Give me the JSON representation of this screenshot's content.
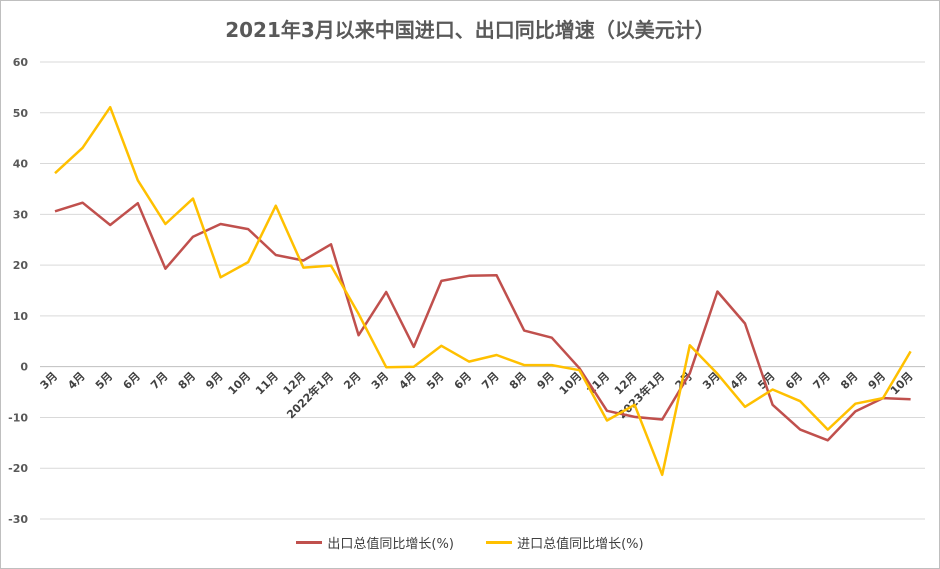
{
  "chart_data": {
    "type": "line",
    "title": "2021年3月以来中国进口、出口同比增速（以美元计）",
    "ylim": [
      -30,
      60
    ],
    "yticks": [
      60,
      50,
      40,
      30,
      20,
      10,
      0,
      -10,
      -20,
      -30
    ],
    "grid": true,
    "legend_position": "bottom",
    "categories": [
      "3月",
      "4月",
      "5月",
      "6月",
      "7月",
      "8月",
      "9月",
      "10月",
      "11月",
      "12月",
      "2022年1月",
      "2月",
      "3月",
      "4月",
      "5月",
      "6月",
      "7月",
      "8月",
      "9月",
      "10月",
      "11月",
      "12月",
      "2023年1月",
      "2月",
      "3月",
      "4月",
      "5月",
      "6月",
      "7月",
      "8月",
      "9月",
      "10月"
    ],
    "series": [
      {
        "name": "出口总值同比增长(%)",
        "color": "#C0504D",
        "values": [
          30.6,
          32.3,
          27.9,
          32.2,
          19.3,
          25.6,
          28.1,
          27.1,
          22.0,
          20.9,
          24.1,
          6.2,
          14.7,
          3.9,
          16.9,
          17.9,
          18.0,
          7.1,
          5.7,
          -0.3,
          -8.7,
          -9.9,
          -10.4,
          -1.3,
          14.8,
          8.5,
          -7.5,
          -12.4,
          -14.5,
          -8.8,
          -6.2,
          -6.4
        ]
      },
      {
        "name": "进口总值同比增长(%)",
        "color": "#FFC000",
        "values": [
          38.1,
          43.1,
          51.1,
          36.7,
          28.1,
          33.1,
          17.6,
          20.6,
          31.7,
          19.5,
          19.9,
          10.4,
          -0.1,
          0.0,
          4.1,
          1.0,
          2.3,
          0.3,
          0.3,
          -0.7,
          -10.6,
          -7.5,
          -21.3,
          4.2,
          -1.4,
          -7.9,
          -4.5,
          -6.8,
          -12.4,
          -7.3,
          -6.2,
          3.0
        ]
      }
    ]
  }
}
